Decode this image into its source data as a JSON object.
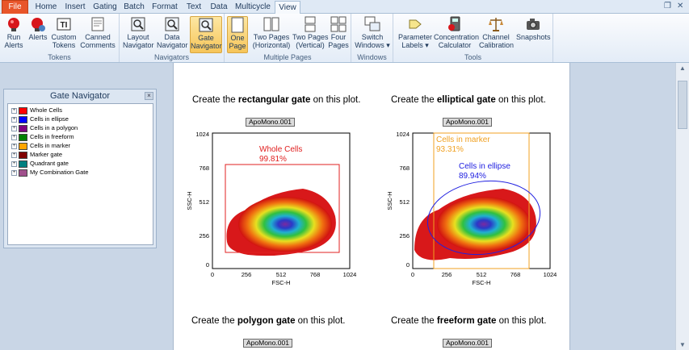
{
  "menu": {
    "tabs": [
      "File",
      "Home",
      "Insert",
      "Gating",
      "Batch",
      "Format",
      "Text",
      "Data",
      "Multicycle",
      "View"
    ],
    "active": "View"
  },
  "ribbon": {
    "groups": [
      {
        "label": "Tokens",
        "buttons": [
          "Run\nAlerts",
          "Alerts",
          "Custom\nTokens",
          "Canned\nComments"
        ]
      },
      {
        "label": "Navigators",
        "buttons": [
          "Layout\nNavigator",
          "Data\nNavigator",
          "Gate\nNavigator"
        ]
      },
      {
        "label": "Multiple Pages",
        "buttons": [
          "One\nPage",
          "Two Pages\n(Horizontal)",
          "Two Pages\n(Vertical)",
          "Four\nPages"
        ]
      },
      {
        "label": "Windows",
        "buttons": [
          "Switch\nWindows ▾"
        ]
      },
      {
        "label": "Tools",
        "buttons": [
          "Parameter\nLabels ▾",
          "Concentration\nCalculator",
          "Channel\nCalibration",
          "Snapshots"
        ]
      }
    ]
  },
  "gate_navigator": {
    "title": "Gate Navigator",
    "close_glyph": "×",
    "expand_glyph": "+",
    "items": [
      {
        "label": "Whole Cells",
        "color": "#ff0000"
      },
      {
        "label": "Cells in ellipse",
        "color": "#0000ff"
      },
      {
        "label": "Cells in a polygon",
        "color": "#800080"
      },
      {
        "label": "Cells in freeform",
        "color": "#008000"
      },
      {
        "label": "Cells in marker",
        "color": "#ffa500"
      },
      {
        "label": "Marker gate",
        "color": "#800000"
      },
      {
        "label": "Quadrant gate",
        "color": "#008080"
      },
      {
        "label": "My Combination Gate",
        "color": "#a0508c"
      }
    ]
  },
  "plots": [
    {
      "instruction_pre": "Create the ",
      "instruction_bold": "rectangular gate",
      "instruction_post": " on this plot.",
      "sample": "ApoMono.001",
      "xlabel": "FSC-H",
      "ylabel": "SSC-H",
      "ticks": [
        "0",
        "256",
        "512",
        "768",
        "1024"
      ],
      "gates": [
        {
          "name": "Whole Cells",
          "pct": "99.81%",
          "color": "#e02020"
        }
      ]
    },
    {
      "instruction_pre": "Create the ",
      "instruction_bold": "elliptical gate",
      "instruction_post": " on this plot.",
      "sample": "ApoMono.001",
      "xlabel": "FSC-H",
      "ylabel": "SSC-H",
      "ticks": [
        "0",
        "256",
        "512",
        "768",
        "1024"
      ],
      "gates": [
        {
          "name": "Cells in marker",
          "pct": "93.31%",
          "color": "#f0a020"
        },
        {
          "name": "Cells in ellipse",
          "pct": "89.94%",
          "color": "#2020e0"
        }
      ]
    },
    {
      "instruction_pre": "Create the ",
      "instruction_bold": "polygon gate",
      "instruction_post": " on this plot.",
      "sample": "ApoMono.001"
    },
    {
      "instruction_pre": "Create the ",
      "instruction_bold": "freeform gate",
      "instruction_post": " on this plot.",
      "sample": "ApoMono.001"
    }
  ],
  "window_controls": {
    "restore": "❐",
    "close": "✕"
  },
  "scrollbar": {
    "up": "▲",
    "down": "▼"
  }
}
